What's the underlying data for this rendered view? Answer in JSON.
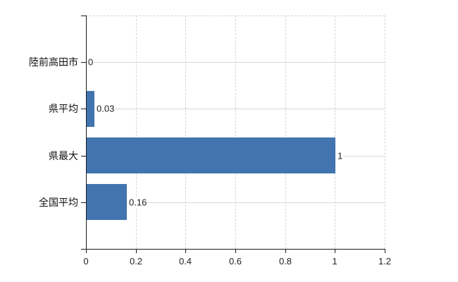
{
  "chart_data": {
    "type": "bar",
    "orientation": "horizontal",
    "title": "",
    "xlabel": "",
    "ylabel": "",
    "categories": [
      "陸前高田市",
      "県平均",
      "県最大",
      "全国平均"
    ],
    "values": [
      0,
      0.03,
      1,
      0.16
    ],
    "value_labels": [
      "0",
      "0.03",
      "1",
      "0.16"
    ],
    "xlim": [
      0,
      1.2
    ],
    "x_ticks": [
      0,
      0.2,
      0.4,
      0.6,
      0.8,
      1,
      1.2
    ],
    "x_tick_labels": [
      "0",
      "0.2",
      "0.4",
      "0.6",
      "0.8",
      "1",
      "1.2"
    ],
    "grid": "vertical-dashed-at-ticks, horizontal-solid-at-category-rows, dashed-top-border",
    "legend": "none",
    "colors": {
      "bar": "#4274af",
      "axis": "#1a1a1a",
      "grid_vertical": "#d8d3d5",
      "grid_horizontal": "#d6dbd4",
      "text": "#222222",
      "background": "#ffffff"
    }
  }
}
